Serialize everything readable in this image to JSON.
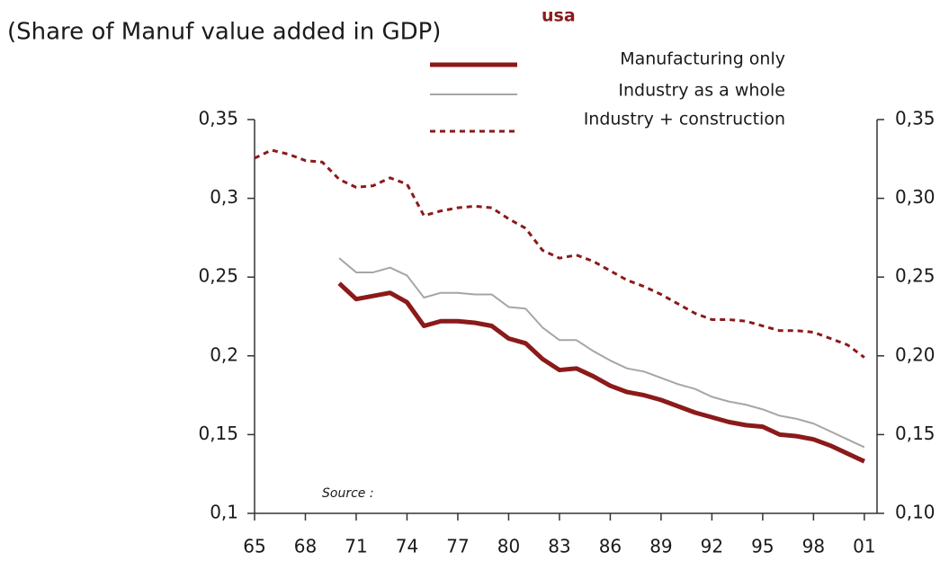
{
  "chart_data": {
    "type": "line",
    "title": "(Share of Manuf value added in GDP)",
    "subtitle": "usa",
    "annotation": "Source :",
    "xlim": [
      1965,
      2001.75
    ],
    "xticks": [
      {
        "value": 1965,
        "label": "65"
      },
      {
        "value": 1968,
        "label": "68"
      },
      {
        "value": 1971,
        "label": "71"
      },
      {
        "value": 1974,
        "label": "74"
      },
      {
        "value": 1977,
        "label": "77"
      },
      {
        "value": 1980,
        "label": "80"
      },
      {
        "value": 1983,
        "label": "83"
      },
      {
        "value": 1986,
        "label": "86"
      },
      {
        "value": 1989,
        "label": "89"
      },
      {
        "value": 1992,
        "label": "92"
      },
      {
        "value": 1995,
        "label": "95"
      },
      {
        "value": 1998,
        "label": "98"
      },
      {
        "value": 2001,
        "label": "01"
      }
    ],
    "ylim": [
      0.1,
      0.35
    ],
    "yticks": [
      {
        "value": 0.1,
        "label": "0,1"
      },
      {
        "value": 0.15,
        "label": "0,15"
      },
      {
        "value": 0.2,
        "label": "0,2"
      },
      {
        "value": 0.25,
        "label": "0,25"
      },
      {
        "value": 0.3,
        "label": "0,3"
      },
      {
        "value": 0.35,
        "label": "0,35"
      }
    ],
    "y2lim": [
      0.1,
      0.35
    ],
    "y2ticks": [
      {
        "value": 0.1,
        "label": "0,10"
      },
      {
        "value": 0.15,
        "label": "0,15"
      },
      {
        "value": 0.2,
        "label": "0,20"
      },
      {
        "value": 0.25,
        "label": "0,25"
      },
      {
        "value": 0.3,
        "label": "0,30"
      },
      {
        "value": 0.35,
        "label": "0,35"
      }
    ],
    "x": [
      1965,
      1966,
      1967,
      1968,
      1969,
      1970,
      1971,
      1972,
      1973,
      1974,
      1975,
      1976,
      1977,
      1978,
      1979,
      1980,
      1981,
      1982,
      1983,
      1984,
      1985,
      1986,
      1987,
      1988,
      1989,
      1990,
      1991,
      1992,
      1993,
      1994,
      1995,
      1996,
      1997,
      1998,
      1999,
      2000,
      2001
    ],
    "series": [
      {
        "name": "Manufacturing only",
        "color": "#8b1a1a",
        "width": 5,
        "style": "solid",
        "values": [
          null,
          null,
          null,
          null,
          null,
          0.246,
          0.236,
          0.238,
          0.24,
          0.234,
          0.219,
          0.222,
          0.222,
          0.221,
          0.219,
          0.211,
          0.208,
          0.198,
          0.191,
          0.192,
          0.187,
          0.181,
          0.177,
          0.175,
          0.172,
          0.168,
          0.164,
          0.161,
          0.158,
          0.156,
          0.155,
          0.15,
          0.149,
          0.147,
          0.143,
          0.138,
          0.133
        ]
      },
      {
        "name": "Industry as a whole",
        "color": "#a6a6a6",
        "width": 2,
        "style": "solid",
        "values": [
          null,
          null,
          null,
          null,
          null,
          0.262,
          0.253,
          0.253,
          0.256,
          0.251,
          0.237,
          0.24,
          0.24,
          0.239,
          0.239,
          0.231,
          0.23,
          0.218,
          0.21,
          0.21,
          0.203,
          0.197,
          0.192,
          0.19,
          0.186,
          0.182,
          0.179,
          0.174,
          0.171,
          0.169,
          0.166,
          0.162,
          0.16,
          0.157,
          0.152,
          0.147,
          0.142
        ]
      },
      {
        "name": "Industry + construction",
        "color": "#8b1a1a",
        "width": 3,
        "style": "dashed",
        "values": [
          0.3255,
          0.3306,
          0.328,
          0.324,
          0.323,
          0.312,
          0.307,
          0.308,
          0.313,
          0.309,
          0.289,
          0.292,
          0.294,
          0.295,
          0.294,
          0.287,
          0.281,
          0.267,
          0.262,
          0.264,
          0.26,
          0.254,
          0.248,
          0.244,
          0.239,
          0.233,
          0.227,
          0.223,
          0.223,
          0.222,
          0.219,
          0.216,
          0.216,
          0.215,
          0.211,
          0.207,
          0.199
        ]
      }
    ]
  }
}
